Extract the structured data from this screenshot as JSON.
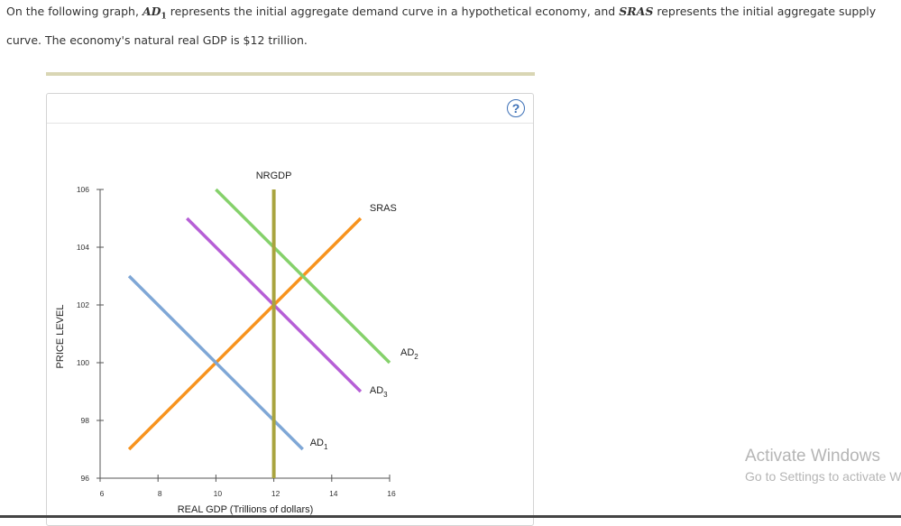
{
  "question": {
    "part1": "On the following graph, ",
    "ad1": "AD",
    "ad1_sub": "1",
    "part2": " represents the initial aggregate demand curve in a hypothetical economy, and ",
    "sras": "SRAS",
    "part3": " represents the initial aggregate supply curve. The economy's natural real GDP is $12 trillion."
  },
  "help_label": "?",
  "colors": {
    "sras": "#f7931e",
    "ad1": "#7fa7d6",
    "ad2": "#85d16b",
    "ad3": "#b65fd6",
    "nrgdp": "#a9a43f"
  },
  "chart_data": {
    "type": "line",
    "xlabel": "REAL GDP (Trillions of dollars)",
    "ylabel": "PRICE LEVEL",
    "xlim": [
      6,
      16
    ],
    "ylim": [
      96,
      106
    ],
    "x_ticks": [
      6,
      8,
      10,
      12,
      14,
      16
    ],
    "y_ticks": [
      96,
      98,
      100,
      102,
      104,
      106
    ],
    "grid": false,
    "series": [
      {
        "name": "SRAS",
        "label": "SRAS",
        "label_sub": "",
        "color": "#f7931e",
        "x": [
          7,
          15
        ],
        "y": [
          97,
          105
        ]
      },
      {
        "name": "AD1",
        "label": "AD",
        "label_sub": "1",
        "color": "#7fa7d6",
        "x": [
          7,
          13
        ],
        "y": [
          103,
          97
        ]
      },
      {
        "name": "AD2",
        "label": "AD",
        "label_sub": "2",
        "color": "#85d16b",
        "x": [
          10,
          16
        ],
        "y": [
          106,
          100
        ]
      },
      {
        "name": "AD3",
        "label": "AD",
        "label_sub": "3",
        "color": "#b65fd6",
        "x": [
          9,
          15
        ],
        "y": [
          105,
          99
        ]
      },
      {
        "name": "NRGDP",
        "label": "NRGDP",
        "label_sub": "",
        "color": "#a9a43f",
        "x": [
          12,
          12
        ],
        "y": [
          106,
          96
        ]
      }
    ]
  },
  "watermark": {
    "line1": "Activate Windows",
    "line2": "Go to Settings to activate Windows."
  }
}
